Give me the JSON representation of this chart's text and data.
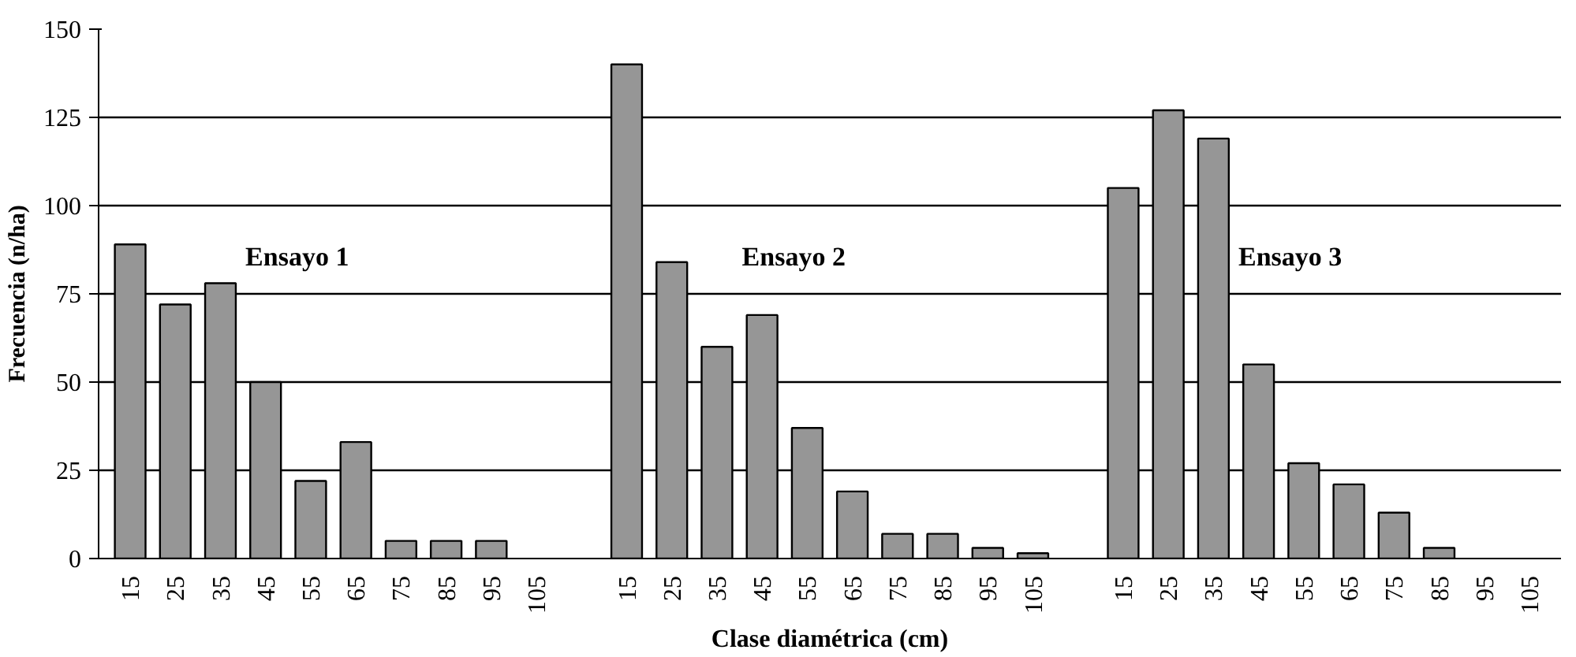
{
  "chart_data": {
    "type": "bar",
    "xlabel": "Clase diamétrica (cm)",
    "ylabel": "Frecuencia (n/ha)",
    "categories": [
      "15",
      "25",
      "35",
      "45",
      "55",
      "65",
      "75",
      "85",
      "95",
      "105",
      null,
      "15",
      "25",
      "35",
      "45",
      "55",
      "65",
      "75",
      "85",
      "95",
      "105",
      null,
      "15",
      "25",
      "35",
      "45",
      "55",
      "65",
      "75",
      "85",
      "95",
      "105"
    ],
    "values": [
      89,
      72,
      78,
      50,
      22,
      33,
      5,
      5,
      5,
      0,
      null,
      140,
      84,
      60,
      69,
      37,
      19,
      7,
      7,
      3,
      1.5,
      null,
      105,
      127,
      119,
      55,
      27,
      21,
      13,
      3,
      0,
      0
    ],
    "color": "#969696",
    "annotations": [
      "Ensayo 1",
      "Ensayo 2",
      "Ensayo 3"
    ],
    "ylim": [
      0,
      150
    ],
    "yticks": [
      0,
      25,
      50,
      75,
      100,
      125,
      150
    ],
    "grid": "y"
  }
}
